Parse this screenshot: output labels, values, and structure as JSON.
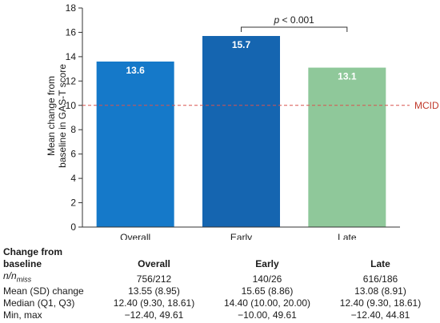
{
  "chart_data": {
    "type": "bar",
    "categories": [
      "Overall",
      "Early",
      "Late"
    ],
    "values": [
      13.6,
      15.7,
      13.1
    ],
    "value_labels": [
      "13.6",
      "15.7",
      "13.1"
    ],
    "colors": [
      "#1579c9",
      "#1565b0",
      "#8fc89a"
    ],
    "ylabel": "Mean change from baseline in GAS-T score",
    "ylabel_lines": [
      "Mean change from",
      "baseline in GAS-T score"
    ],
    "ylim": [
      0,
      18
    ],
    "yticks": [
      0,
      2,
      4,
      6,
      8,
      10,
      12,
      14,
      16,
      18
    ],
    "reference_line": {
      "value": 10,
      "label": "MCID",
      "color": "#d9534f"
    },
    "significance": {
      "between": [
        "Early",
        "Late"
      ],
      "label": "p < 0.001"
    },
    "grid": false
  },
  "table": {
    "header_lines": [
      "Change from",
      "baseline"
    ],
    "columns": [
      "Overall",
      "Early",
      "Late"
    ],
    "rows": [
      {
        "label": "n/n",
        "label_sub": "miss",
        "values": [
          "756/212",
          "140/26",
          "616/186"
        ]
      },
      {
        "label": "Mean (SD) change",
        "values": [
          "13.55 (8.95)",
          "15.65 (8.86)",
          "13.08 (8.91)"
        ]
      },
      {
        "label": "Median (Q1, Q3)",
        "values": [
          "12.40 (9.30, 18.61)",
          "14.40 (10.00, 20.00)",
          "12.40 (9.30, 18.61)"
        ]
      },
      {
        "label": "Min, max",
        "values": [
          "−12.40, 49.61",
          "−10.00, 49.61",
          "−12.40, 44.81"
        ]
      }
    ]
  }
}
